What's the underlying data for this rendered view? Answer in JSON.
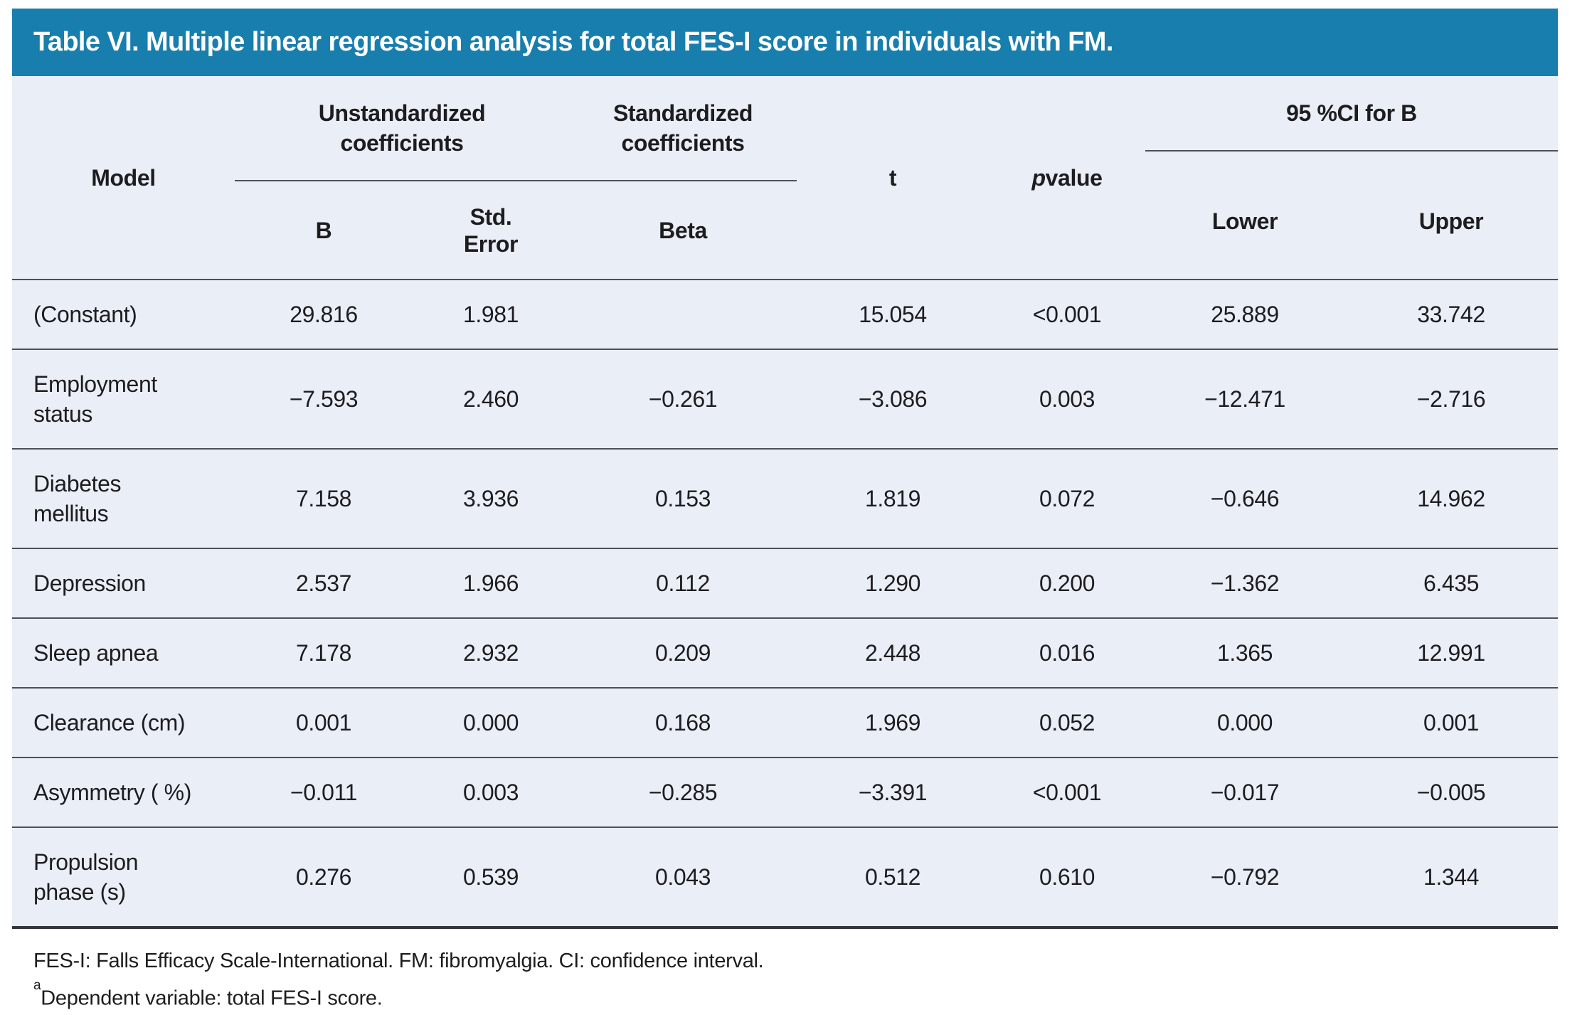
{
  "title": "Table VI. Multiple linear regression analysis for total FES-I score in individuals with FM.",
  "header": {
    "model": "Model",
    "unstandardized": "Unstandardized coefficients",
    "standardized": "Standardized coefficients",
    "b": "B",
    "std_error": "Std. Error",
    "beta": "Beta",
    "t": "t",
    "p_italic": "p",
    "p_rest": " value",
    "ci": "95 %CI for B",
    "lower": "Lower",
    "upper": "Upper"
  },
  "rows": [
    {
      "model": "(Constant)",
      "b": "29.816",
      "se": "1.981",
      "beta": "",
      "t": "15.054",
      "p": "<0.001",
      "lower": "25.889",
      "upper": "33.742"
    },
    {
      "model": "Employment status",
      "b": "−7.593",
      "se": "2.460",
      "beta": "−0.261",
      "t": "−3.086",
      "p": "0.003",
      "lower": "−12.471",
      "upper": "−2.716"
    },
    {
      "model": "Diabetes mellitus",
      "b": "7.158",
      "se": "3.936",
      "beta": "0.153",
      "t": "1.819",
      "p": "0.072",
      "lower": "−0.646",
      "upper": "14.962"
    },
    {
      "model": "Depression",
      "b": "2.537",
      "se": "1.966",
      "beta": "0.112",
      "t": "1.290",
      "p": "0.200",
      "lower": "−1.362",
      "upper": "6.435"
    },
    {
      "model": "Sleep apnea",
      "b": "7.178",
      "se": "2.932",
      "beta": "0.209",
      "t": "2.448",
      "p": "0.016",
      "lower": "1.365",
      "upper": "12.991"
    },
    {
      "model": "Clearance (cm)",
      "b": "0.001",
      "se": "0.000",
      "beta": "0.168",
      "t": "1.969",
      "p": "0.052",
      "lower": "0.000",
      "upper": "0.001"
    },
    {
      "model": "Asymmetry ( %)",
      "b": "−0.011",
      "se": "0.003",
      "beta": "−0.285",
      "t": "−3.391",
      "p": "<0.001",
      "lower": "−0.017",
      "upper": "−0.005"
    },
    {
      "model": "Propulsion phase (s)",
      "b": "0.276",
      "se": "0.539",
      "beta": "0.043",
      "t": "0.512",
      "p": "0.610",
      "lower": "−0.792",
      "upper": "1.344"
    }
  ],
  "footnotes": {
    "line1": "FES-I: Falls Efficacy Scale-International. FM: fibromyalgia. CI: confidence interval.",
    "line2_sup": "a",
    "line2_text": "Dependent variable: total FES-I score."
  },
  "colors": {
    "title_bg": "#187EAD",
    "title_text": "#FFFFFF",
    "body_bg": "#EAEEF7",
    "rule": "#4D5156",
    "bottom_rule": "#33363A",
    "text": "#1D1D1F"
  }
}
